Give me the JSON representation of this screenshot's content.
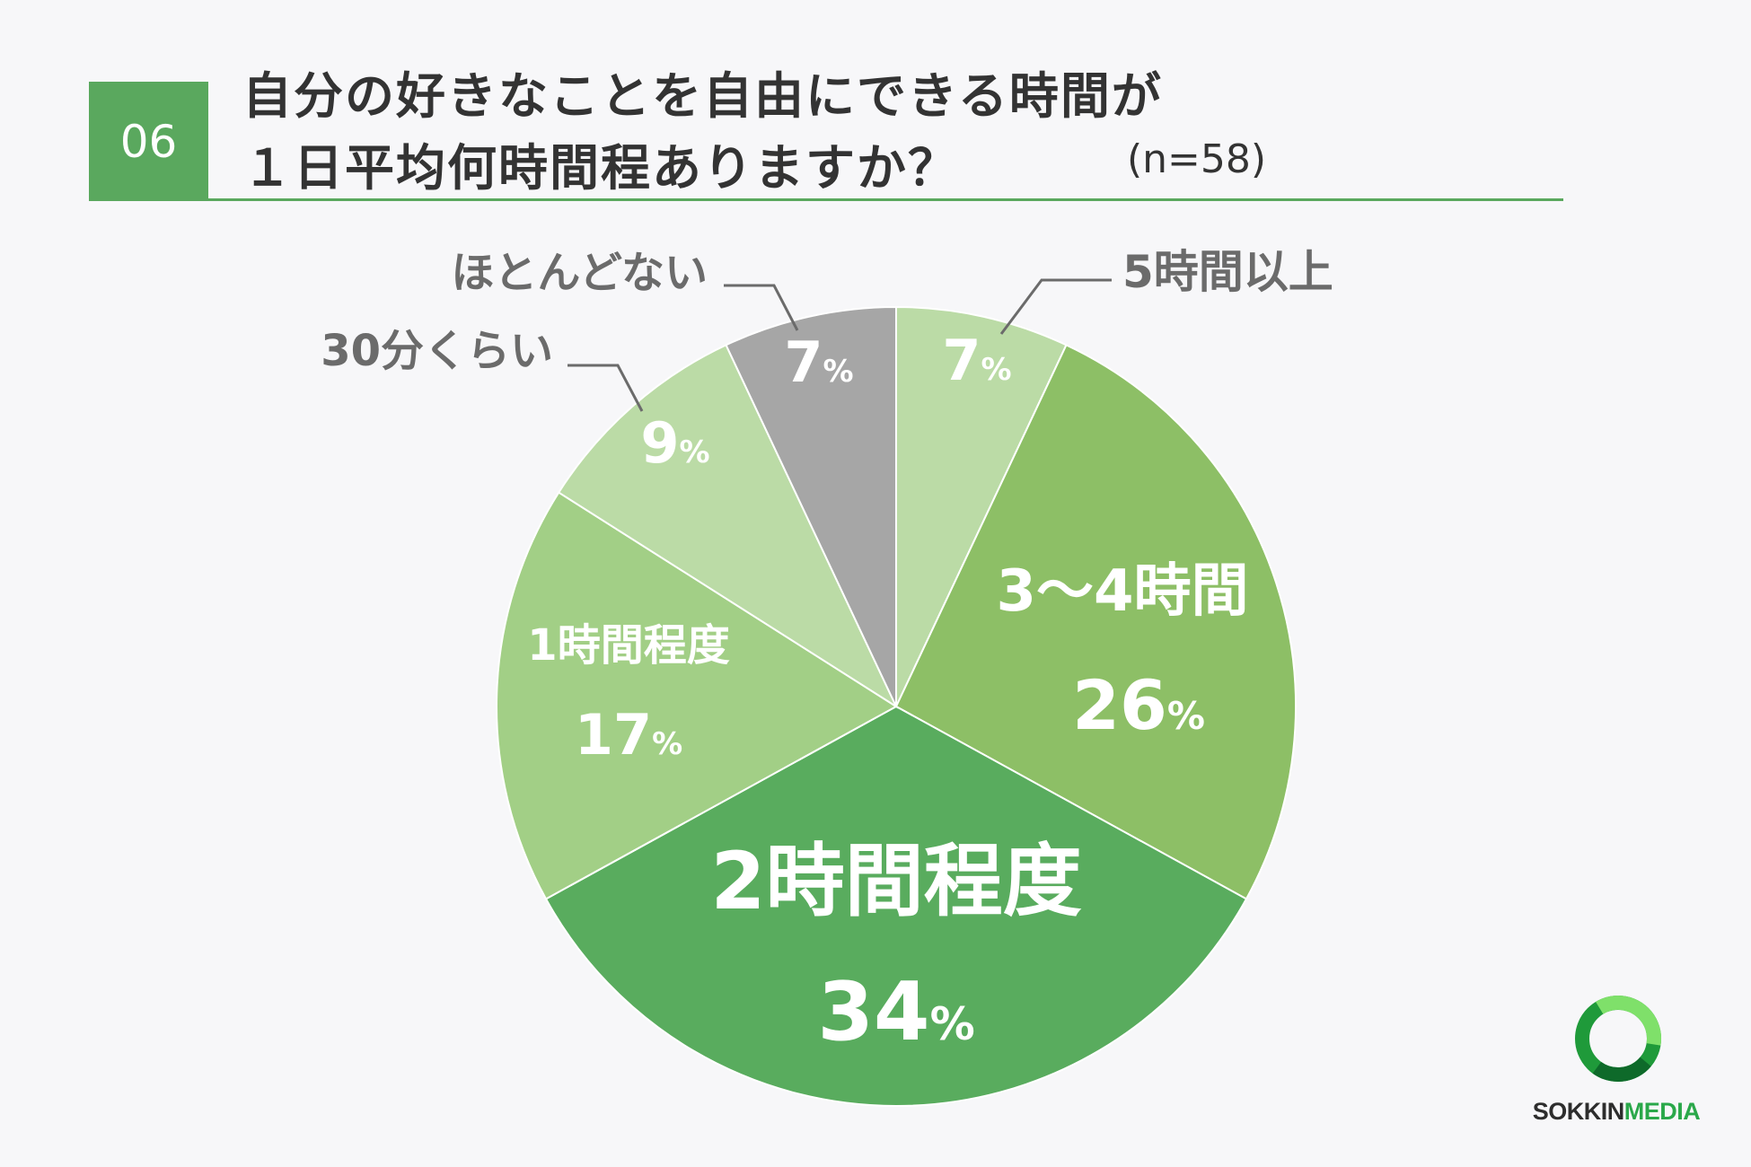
{
  "question": {
    "number": "06",
    "line1": "自分の好きなことを自由にできる時間が",
    "line2": "１日平均何時間程ありますか？",
    "sample": "(n=58)"
  },
  "chart_data": {
    "type": "pie",
    "slices": [
      {
        "label": "5時間以上",
        "value": 7,
        "color": "#bbdba6"
      },
      {
        "label": "3〜4時間",
        "value": 26,
        "color": "#8dbf66"
      },
      {
        "label": "2時間程度",
        "value": 34,
        "color": "#59ac5e"
      },
      {
        "label": "1時間程度",
        "value": 17,
        "color": "#a2cf86"
      },
      {
        "label": "30分くらい",
        "value": 9,
        "color": "#bbdba6"
      },
      {
        "label": "ほとんどない",
        "value": 7,
        "color": "#a6a6a6"
      }
    ],
    "value_suffix": "%",
    "start_angle_deg": 0,
    "direction": "clockwise"
  },
  "logo": {
    "part1": "SOKKIN",
    "part2": "MEDIA"
  }
}
